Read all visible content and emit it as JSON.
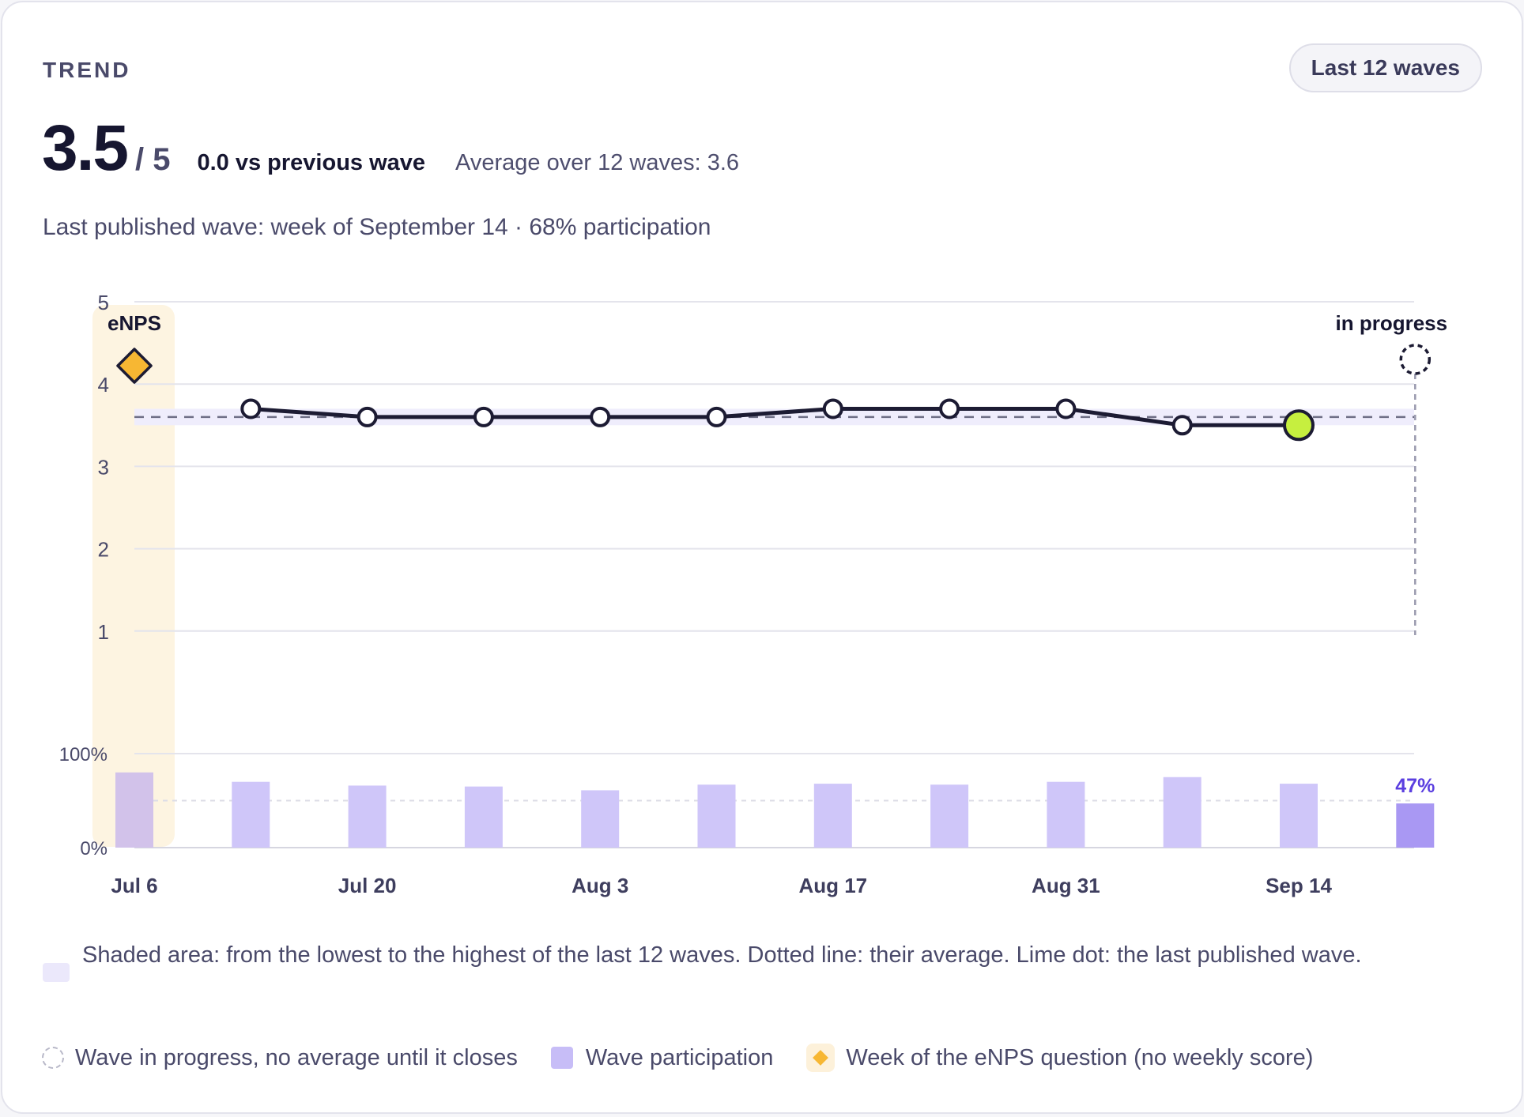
{
  "header": {
    "eyebrow": "TREND",
    "range_button": "Last 12 waves"
  },
  "kpi": {
    "value": "3.5",
    "of": "/ 5",
    "delta": "0.0 vs previous wave",
    "average": "Average over 12 waves: 3.6"
  },
  "subline": "Last published wave: week of September 14 · 68% participation",
  "legend": {
    "description": "Shaded area: from the lowest to the highest of the last 12 waves. Dotted line: their average. Lime dot: the last published wave.",
    "in_progress": "Wave in progress, no average until it closes",
    "participation": "Wave participation",
    "enps": "Week of the eNPS question (no weekly score)"
  },
  "colors": {
    "line": "#1c1b33",
    "lime": "#c6ef3f",
    "band": "#efedfc",
    "bar": "#cfc6f9",
    "bar_highlight": "#a998f3",
    "enps_band": "#fdf4e1",
    "enps_diamond": "#f7b733",
    "accent_text": "#5b3fe0"
  },
  "chart_data": {
    "type": "line",
    "x": [
      "Jul 6",
      "Jul 13",
      "Jul 20",
      "Jul 27",
      "Aug 3",
      "Aug 10",
      "Aug 17",
      "Aug 24",
      "Aug 31",
      "Sep 7",
      "Sep 14",
      "Sep 21"
    ],
    "x_tick_labels": [
      "Jul 6",
      "Jul 20",
      "Aug 3",
      "Aug 17",
      "Aug 31",
      "Sep 14"
    ],
    "score": [
      null,
      3.7,
      3.6,
      3.6,
      3.6,
      3.6,
      3.7,
      3.7,
      3.7,
      3.5,
      3.5,
      null
    ],
    "participation": [
      80,
      70,
      66,
      65,
      61,
      67,
      68,
      67,
      70,
      75,
      68,
      47
    ],
    "y_ticks": [
      1,
      2,
      3,
      4,
      5
    ],
    "ylim": [
      0,
      5
    ],
    "participation_ticks": [
      "100%",
      "0%"
    ],
    "participation_ylim": [
      0,
      100
    ],
    "participation_reference": 50,
    "average": 3.6,
    "range_band": [
      3.5,
      3.7
    ],
    "enps_week": "Jul 6",
    "enps_label": "eNPS",
    "in_progress_week": "Sep 21",
    "in_progress_label": "in progress",
    "latest_participation_label": "47%",
    "last_published": "Sep 14",
    "grid": true
  }
}
